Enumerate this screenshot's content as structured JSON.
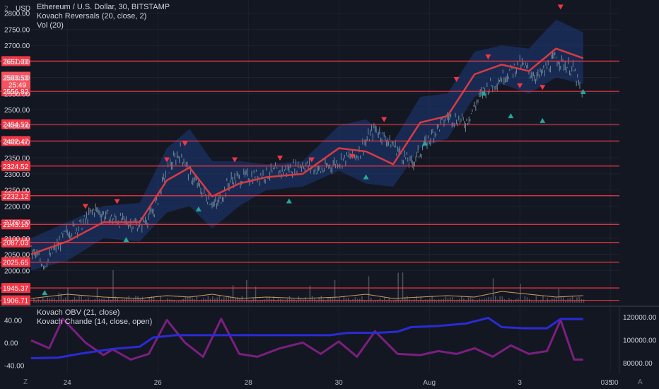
{
  "header": {
    "currency": "USD",
    "legend_main": [
      "Ethereum / U.S. Dollar, 30, BITSTAMP",
      "Kovach Reversals (20, close, 2)",
      "Vol (20)"
    ],
    "legend_sub": [
      "Kovach OBV (21, close)",
      "Kovach Chande (14, close, open)"
    ],
    "corner_top_left": "2",
    "corner_bottom_left": "Z",
    "corner_bottom_right": "A"
  },
  "colors": {
    "background": "#131722",
    "price": "#6f8a9b",
    "band": "#1e3a7a",
    "ma": "#d93b44",
    "hline": "#f23645",
    "buy": "#26a69a",
    "sell": "#f23645",
    "obv": "#2b2bd6",
    "chande": "#7b1f7f",
    "volume": "#5d606b",
    "vol_ma": "#d49a55"
  },
  "chart_data": [
    {
      "type": "line",
      "title": "Ethereum / U.S. Dollar, 30, BITSTAMP",
      "price_ticks": [
        2000,
        2050,
        2100,
        2150,
        2200,
        2250,
        2300,
        2350,
        2400,
        2450,
        2500,
        2550,
        2600,
        2650,
        2700,
        2750,
        2800
      ],
      "price_tick_labels": [
        "2000.00",
        "2050.00",
        "2100.00",
        "2150.00",
        "2200.00",
        "2250.00",
        "2300.00",
        "2350.00",
        "2400.00",
        "2450.00",
        "2500.00",
        "2550.00",
        "2600.00",
        "2650.00",
        "2700.00",
        "2750.00",
        "2800.00"
      ],
      "ylim": [
        1895,
        2830
      ],
      "horizontal_levels": [
        2651.0,
        2556.82,
        2454.53,
        2402.47,
        2324.52,
        2232.12,
        2143.1,
        2087.03,
        2025.65,
        1945.37,
        1906.71
      ],
      "horizontal_level_labels": [
        "2651.00",
        "2556.82",
        "2454.53",
        "2402.47",
        "2324.52",
        "2232.12",
        "2143.10",
        "2087.03",
        "2025.65",
        "1945.37",
        "1906.71"
      ],
      "last_price": 2593.5,
      "last_price_label": "2593.50",
      "countdown": "25:49",
      "x_ticks": [
        "24",
        "26",
        "28",
        "30",
        "Aug",
        "3",
        "5",
        "03:00"
      ],
      "series": [
        {
          "name": "Price",
          "x": [
            23.2,
            23.5,
            23.8,
            24.0,
            24.3,
            24.6,
            25.0,
            25.3,
            25.6,
            25.9,
            26.2,
            26.5,
            26.7,
            27.0,
            27.3,
            27.6,
            28.0,
            28.4,
            28.8,
            29.2,
            29.6,
            30.0,
            30.4,
            30.8,
            31.2,
            31.6,
            32.0,
            32.4,
            32.8,
            33.2,
            33.6,
            34.0,
            34.4,
            34.8,
            35.2,
            35.4
          ],
          "values": [
            2060,
            2020,
            2080,
            2120,
            2140,
            2190,
            2160,
            2150,
            2140,
            2180,
            2310,
            2370,
            2300,
            2240,
            2200,
            2280,
            2290,
            2300,
            2310,
            2330,
            2310,
            2340,
            2360,
            2440,
            2390,
            2330,
            2410,
            2480,
            2460,
            2560,
            2600,
            2640,
            2600,
            2660,
            2620,
            2530
          ]
        },
        {
          "name": "MA",
          "x": [
            23.2,
            24.0,
            24.8,
            25.6,
            26.2,
            26.7,
            27.2,
            27.8,
            28.4,
            29.2,
            30.0,
            30.6,
            31.2,
            31.8,
            32.4,
            33.0,
            33.6,
            34.2,
            34.8,
            35.4
          ],
          "values": [
            2050,
            2090,
            2150,
            2150,
            2280,
            2320,
            2230,
            2270,
            2290,
            2300,
            2380,
            2370,
            2330,
            2460,
            2480,
            2610,
            2640,
            2620,
            2690,
            2660
          ]
        },
        {
          "name": "Band upper",
          "x": [
            23.2,
            24.0,
            24.8,
            25.6,
            26.2,
            26.7,
            27.2,
            27.8,
            28.4,
            29.2,
            30.0,
            30.6,
            31.2,
            31.8,
            32.4,
            33.0,
            33.6,
            34.2,
            34.8,
            35.4
          ],
          "values": [
            2100,
            2150,
            2200,
            2210,
            2380,
            2440,
            2340,
            2340,
            2330,
            2340,
            2450,
            2470,
            2400,
            2540,
            2550,
            2680,
            2700,
            2690,
            2780,
            2740
          ]
        },
        {
          "name": "Band lower",
          "x": [
            23.2,
            24.0,
            24.8,
            25.6,
            26.2,
            26.7,
            27.2,
            27.8,
            28.4,
            29.2,
            30.0,
            30.6,
            31.2,
            31.8,
            32.4,
            33.0,
            33.6,
            34.2,
            34.8,
            35.4
          ],
          "values": [
            2000,
            2030,
            2100,
            2090,
            2180,
            2200,
            2130,
            2200,
            2250,
            2260,
            2310,
            2270,
            2260,
            2380,
            2410,
            2540,
            2580,
            2550,
            2600,
            2580
          ]
        }
      ],
      "sell_signals": {
        "x": [
          24.4,
          25.1,
          26.2,
          26.6,
          27.7,
          28.7,
          29.4,
          30.3,
          31.0,
          32.6,
          33.3,
          34.0,
          34.5,
          34.9
        ],
        "values": [
          2200,
          2215,
          2345,
          2395,
          2345,
          2350,
          2345,
          2355,
          2470,
          2595,
          2665,
          2575,
          2570,
          2820
        ]
      },
      "buy_signals": {
        "x": [
          23.5,
          25.3,
          26.9,
          28.9,
          30.6,
          31.9,
          33.2,
          33.8,
          34.5,
          35.4
        ],
        "values": [
          1930,
          2095,
          2190,
          2215,
          2290,
          2395,
          2550,
          2480,
          2465,
          2555
        ]
      },
      "volume_ma": {
        "x": [
          23.2,
          24.0,
          24.8,
          25.6,
          26.2,
          26.7,
          27.2,
          27.8,
          28.4,
          29.2,
          30.0,
          30.6,
          31.2,
          31.8,
          32.4,
          33.0,
          33.6,
          34.2,
          34.8,
          35.4
        ],
        "values": [
          3,
          6,
          4,
          3,
          5,
          4,
          6,
          3,
          4,
          3,
          4,
          6,
          3,
          4,
          5,
          4,
          8,
          6,
          4,
          5
        ]
      }
    },
    {
      "type": "line",
      "title": "Kovach OBV (21, close)",
      "left_ticks": [
        -40,
        0,
        40
      ],
      "left_tick_labels": [
        "-40.00",
        "0.00",
        "40.00"
      ],
      "right_ticks": [
        80000,
        100000,
        120000
      ],
      "right_tick_labels": [
        "80000.00",
        "100000.00",
        "120000.00"
      ],
      "series": [
        {
          "name": "Kovach OBV (21, close)",
          "x": [
            23.2,
            23.8,
            24.3,
            25.0,
            25.6,
            25.9,
            26.4,
            27.0,
            27.6,
            28.2,
            29.0,
            29.8,
            30.2,
            30.8,
            31.3,
            31.6,
            32.2,
            32.8,
            33.3,
            33.6,
            34.1,
            34.6,
            34.9,
            35.4
          ],
          "values": [
            84000,
            84500,
            88000,
            92000,
            94000,
            102000,
            104000,
            104000,
            104000,
            104000,
            104000,
            104000,
            106000,
            106000,
            107000,
            111000,
            112000,
            114000,
            119000,
            111000,
            110000,
            110000,
            118000,
            118000
          ]
        },
        {
          "name": "Kovach Chande (14, close, open)",
          "x": [
            23.2,
            23.6,
            23.9,
            24.4,
            24.8,
            25.0,
            25.4,
            25.8,
            26.2,
            26.6,
            27.0,
            27.4,
            27.8,
            28.2,
            28.7,
            29.2,
            29.6,
            30.0,
            30.4,
            30.8,
            31.3,
            31.8,
            32.2,
            32.6,
            33.0,
            33.4,
            33.8,
            34.2,
            34.6,
            34.9,
            35.2,
            35.4
          ],
          "values": [
            4,
            -10,
            42,
            0,
            -22,
            -12,
            -30,
            -20,
            40,
            0,
            -25,
            42,
            -20,
            -25,
            -10,
            0,
            -20,
            2,
            -25,
            20,
            -20,
            -22,
            -15,
            -20,
            -10,
            -25,
            -5,
            -20,
            -15,
            40,
            -30,
            -30
          ]
        }
      ]
    }
  ]
}
